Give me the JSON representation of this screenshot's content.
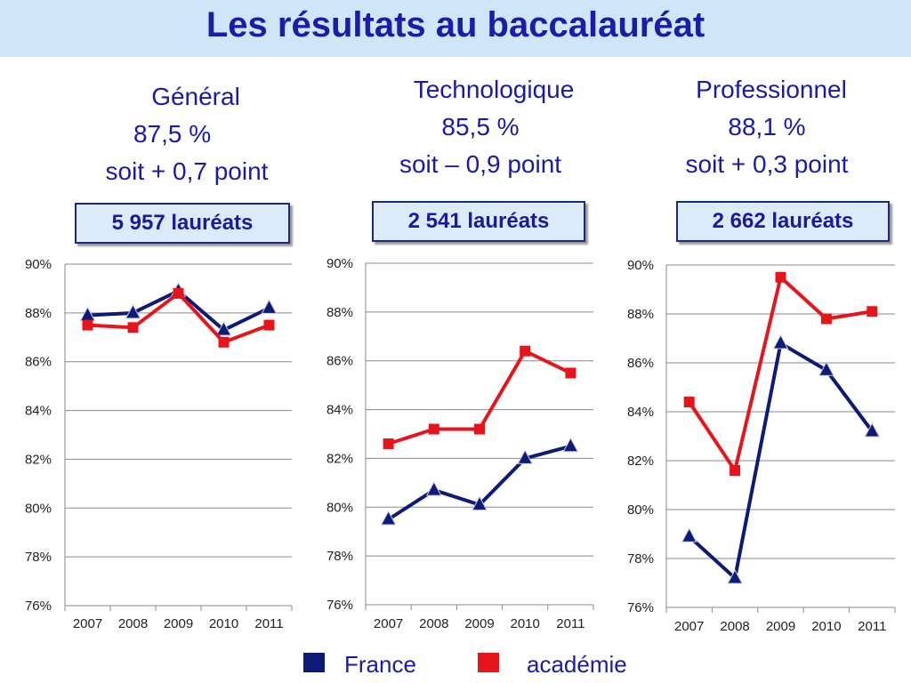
{
  "page": {
    "title": "Les résultats au baccalauréat"
  },
  "colors": {
    "france": "#0c1a78",
    "academie": "#e8141c",
    "title": "#1c1ca8",
    "title_bg": "#cfe6f8"
  },
  "legend": {
    "france": "France",
    "academie": "académie"
  },
  "panels": [
    {
      "label": "Général",
      "rate": "87,5 %",
      "delta": "soit + 0,7 point",
      "laureats": "5 957 lauréats"
    },
    {
      "label": "Technologique",
      "rate": "85,5 %",
      "delta": "soit – 0,9 point",
      "laureats": "2 541 lauréats"
    },
    {
      "label": "Professionnel",
      "rate": "88,1 %",
      "delta": "soit + 0,3 point",
      "laureats": "2 662 lauréats"
    }
  ],
  "chart_data": [
    {
      "type": "line",
      "categories": [
        "2007",
        "2008",
        "2009",
        "2010",
        "2011"
      ],
      "yticks": [
        "90%",
        "88%",
        "86%",
        "84%",
        "82%",
        "80%",
        "78%",
        "76%"
      ],
      "ylim": [
        76,
        90
      ],
      "grid": true,
      "series": [
        {
          "name": "France",
          "values": [
            87.9,
            88.0,
            88.9,
            87.3,
            88.2
          ]
        },
        {
          "name": "académie",
          "values": [
            87.5,
            87.4,
            88.8,
            86.8,
            87.5
          ]
        }
      ]
    },
    {
      "type": "line",
      "categories": [
        "2007",
        "2008",
        "2009",
        "2010",
        "2011"
      ],
      "yticks": [
        "90%",
        "88%",
        "86%",
        "84%",
        "82%",
        "80%",
        "78%",
        "76%"
      ],
      "ylim": [
        76,
        90
      ],
      "grid": true,
      "series": [
        {
          "name": "France",
          "values": [
            79.5,
            80.7,
            80.1,
            82.0,
            82.5
          ]
        },
        {
          "name": "académie",
          "values": [
            82.6,
            83.2,
            83.2,
            86.4,
            85.5
          ]
        }
      ]
    },
    {
      "type": "line",
      "categories": [
        "2007",
        "2008",
        "2009",
        "2010",
        "2011"
      ],
      "yticks": [
        "90%",
        "88%",
        "86%",
        "84%",
        "82%",
        "80%",
        "78%",
        "76%"
      ],
      "ylim": [
        76,
        90
      ],
      "grid": true,
      "series": [
        {
          "name": "France",
          "values": [
            78.9,
            77.2,
            86.8,
            85.7,
            83.2
          ]
        },
        {
          "name": "académie",
          "values": [
            84.4,
            81.6,
            89.5,
            87.8,
            88.1
          ]
        }
      ]
    }
  ]
}
